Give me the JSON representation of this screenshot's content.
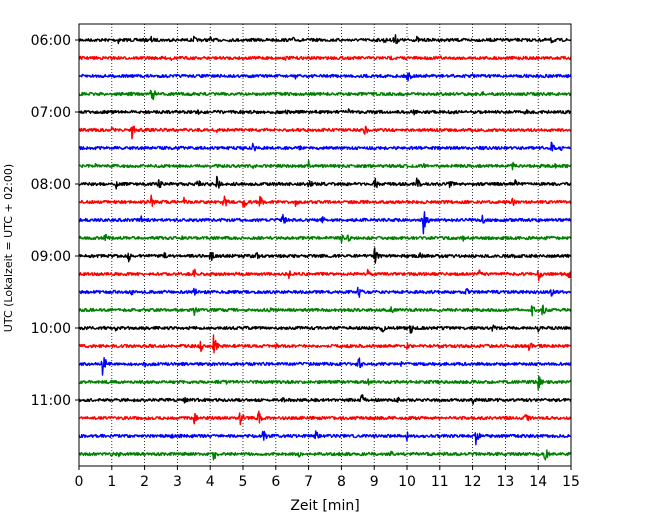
{
  "chart_data": {
    "type": "line",
    "title": "",
    "xlabel": "Zeit  [min]",
    "ylabel": "UTC (Lokalzeit = UTC + 02:00)",
    "xlim": [
      0,
      15
    ],
    "x_ticks": [
      "0",
      "1",
      "2",
      "3",
      "4",
      "5",
      "6",
      "7",
      "8",
      "9",
      "10",
      "11",
      "12",
      "13",
      "14",
      "15"
    ],
    "y_ticks": [
      "06:00",
      "07:00",
      "08:00",
      "09:00",
      "10:00",
      "11:00"
    ],
    "grid": "vertical dotted",
    "trace_colors": [
      "#000000",
      "#ff0000",
      "#0000ff",
      "#008000"
    ],
    "series": [
      {
        "start": "06:00",
        "events": [
          [
            1.2,
            4
          ],
          [
            2.2,
            4
          ],
          [
            3.5,
            4
          ],
          [
            4.0,
            4
          ],
          [
            6.5,
            4
          ],
          [
            9.3,
            4
          ],
          [
            9.6,
            9
          ],
          [
            10.3,
            4
          ],
          [
            14.4,
            5
          ]
        ]
      },
      {
        "start": "06:15",
        "events": [
          [
            2.8,
            3
          ],
          [
            5.5,
            3
          ],
          [
            6.3,
            3
          ],
          [
            9.5,
            3
          ],
          [
            11.0,
            3
          ]
        ]
      },
      {
        "start": "06:30",
        "events": [
          [
            6.6,
            3
          ],
          [
            10.0,
            9
          ],
          [
            12.0,
            3
          ]
        ]
      },
      {
        "start": "06:45",
        "events": [
          [
            1.6,
            3
          ],
          [
            2.2,
            11
          ],
          [
            12.3,
            3
          ],
          [
            13.6,
            3
          ]
        ]
      },
      {
        "start": "07:00",
        "events": [
          [
            3.6,
            4
          ],
          [
            4.4,
            4
          ],
          [
            6.3,
            4
          ],
          [
            8.2,
            4
          ],
          [
            10.2,
            4
          ],
          [
            11.4,
            4
          ],
          [
            13.6,
            4
          ]
        ]
      },
      {
        "start": "07:15",
        "events": [
          [
            1.0,
            4
          ],
          [
            1.6,
            11
          ],
          [
            4.2,
            4
          ],
          [
            8.7,
            7
          ],
          [
            12.4,
            4
          ]
        ]
      },
      {
        "start": "07:30",
        "events": [
          [
            5.3,
            6
          ],
          [
            6.7,
            4
          ],
          [
            10.9,
            5
          ],
          [
            14.4,
            6
          ],
          [
            14.7,
            4
          ]
        ]
      },
      {
        "start": "07:45",
        "events": [
          [
            0.5,
            3
          ],
          [
            5.3,
            3
          ],
          [
            7.0,
            6
          ],
          [
            10.5,
            3
          ],
          [
            13.2,
            6
          ],
          [
            14.5,
            3
          ]
        ]
      },
      {
        "start": "08:00",
        "events": [
          [
            1.1,
            7
          ],
          [
            2.4,
            9
          ],
          [
            3.6,
            6
          ],
          [
            4.2,
            9
          ],
          [
            7.0,
            7
          ],
          [
            9.0,
            9
          ],
          [
            10.3,
            7
          ],
          [
            11.3,
            6
          ],
          [
            13.3,
            5
          ]
        ]
      },
      {
        "start": "08:15",
        "events": [
          [
            2.2,
            7
          ],
          [
            3.2,
            5
          ],
          [
            4.4,
            9
          ],
          [
            5.0,
            9
          ],
          [
            5.5,
            8
          ],
          [
            6.6,
            5
          ],
          [
            13.2,
            7
          ]
        ]
      },
      {
        "start": "08:30",
        "events": [
          [
            1.9,
            4
          ],
          [
            6.2,
            7
          ],
          [
            7.4,
            5
          ],
          [
            10.5,
            14
          ],
          [
            12.3,
            5
          ]
        ]
      },
      {
        "start": "08:45",
        "events": [
          [
            0.75,
            8
          ],
          [
            3.1,
            4
          ],
          [
            8.0,
            6
          ],
          [
            8.2,
            5
          ],
          [
            11.7,
            4
          ],
          [
            14.2,
            4
          ]
        ]
      },
      {
        "start": "09:00",
        "events": [
          [
            1.5,
            8
          ],
          [
            2.6,
            5
          ],
          [
            4.0,
            8
          ],
          [
            5.4,
            5
          ],
          [
            9.0,
            11
          ],
          [
            10.4,
            5
          ],
          [
            13.2,
            5
          ]
        ]
      },
      {
        "start": "09:15",
        "events": [
          [
            3.5,
            8
          ],
          [
            6.4,
            5
          ],
          [
            8.8,
            5
          ],
          [
            12.2,
            5
          ],
          [
            14.0,
            8
          ],
          [
            14.9,
            7
          ]
        ]
      },
      {
        "start": "09:30",
        "events": [
          [
            1.6,
            4
          ],
          [
            3.5,
            6
          ],
          [
            8.5,
            10
          ],
          [
            11.8,
            6
          ],
          [
            14.4,
            5
          ]
        ]
      },
      {
        "start": "09:45",
        "events": [
          [
            3.5,
            7
          ],
          [
            5.8,
            4
          ],
          [
            9.5,
            5
          ],
          [
            13.8,
            9
          ],
          [
            14.1,
            8
          ]
        ]
      },
      {
        "start": "10:00",
        "events": [
          [
            1.1,
            4
          ],
          [
            9.2,
            9
          ],
          [
            10.1,
            7
          ],
          [
            12.6,
            4
          ],
          [
            14.0,
            4
          ]
        ]
      },
      {
        "start": "10:15",
        "events": [
          [
            3.7,
            7
          ],
          [
            4.1,
            11
          ],
          [
            6.0,
            4
          ],
          [
            10.0,
            4
          ],
          [
            13.7,
            8
          ]
        ]
      },
      {
        "start": "10:30",
        "events": [
          [
            0.7,
            14
          ],
          [
            2.0,
            4
          ],
          [
            8.5,
            10
          ],
          [
            9.8,
            5
          ]
        ]
      },
      {
        "start": "10:45",
        "events": [
          [
            4.4,
            7
          ],
          [
            8.8,
            5
          ],
          [
            14.0,
            8
          ]
        ]
      },
      {
        "start": "11:00",
        "events": [
          [
            3.2,
            5
          ],
          [
            6.2,
            4
          ],
          [
            8.6,
            9
          ],
          [
            9.7,
            4
          ],
          [
            12.0,
            5
          ]
        ]
      },
      {
        "start": "11:15",
        "events": [
          [
            3.5,
            8
          ],
          [
            4.9,
            10
          ],
          [
            5.45,
            11
          ],
          [
            13.6,
            8
          ]
        ]
      },
      {
        "start": "11:30",
        "events": [
          [
            2.8,
            4
          ],
          [
            5.6,
            9
          ],
          [
            7.2,
            7
          ],
          [
            10.0,
            5
          ],
          [
            12.1,
            9
          ]
        ]
      },
      {
        "start": "11:45",
        "events": [
          [
            1.2,
            4
          ],
          [
            4.1,
            8
          ],
          [
            6.7,
            4
          ],
          [
            9.5,
            4
          ],
          [
            14.2,
            9
          ]
        ]
      }
    ]
  }
}
